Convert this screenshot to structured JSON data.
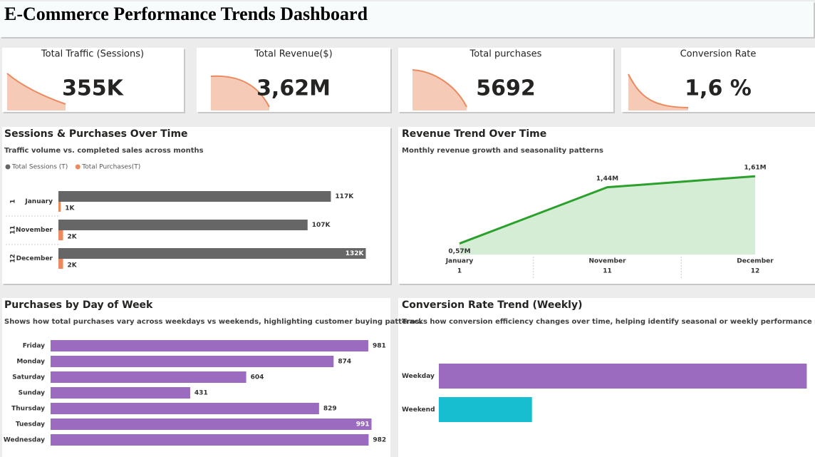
{
  "title": "E-Commerce Performance Trends Dashboard",
  "kpis": [
    {
      "label": "Total Traffic (Sessions)",
      "value": "355K"
    },
    {
      "label": "Total Revenue($)",
      "value": "3,62M"
    },
    {
      "label": "Total purchases",
      "value": "5692"
    },
    {
      "label": "Conversion Rate",
      "value": "1,6 %"
    }
  ],
  "chart_data": [
    {
      "type": "bar",
      "title": "Sessions & Purchases Over Time",
      "subtitle": "Traffic volume vs. completed sales across months",
      "categories": [
        "January",
        "November",
        "December"
      ],
      "category_codes": [
        "1",
        "11",
        "12"
      ],
      "series": [
        {
          "name": "Total Sessions (T)",
          "color": "#666666",
          "values": [
            117000,
            107000,
            132000
          ],
          "value_labels": [
            "117K",
            "107K",
            "132K"
          ]
        },
        {
          "name": "Total Purchases(T)",
          "color": "#ec8a5e",
          "values": [
            1000,
            2000,
            2000
          ],
          "value_labels": [
            "1K",
            "2K",
            "2K"
          ]
        }
      ],
      "xlim": [
        0,
        134000
      ]
    },
    {
      "type": "area",
      "title": "Revenue Trend Over Time",
      "subtitle": "Monthly revenue growth and seasonality patterns",
      "categories": [
        "January",
        "November",
        "December"
      ],
      "category_codes": [
        "1",
        "11",
        "12"
      ],
      "values": [
        570000,
        1440000,
        1610000
      ],
      "value_labels": [
        "0,57M",
        "1,44M",
        "1,61M"
      ],
      "color": "#2ca02c",
      "ylim": [
        400000,
        1800000
      ]
    },
    {
      "type": "bar",
      "title": "Purchases by Day of Week",
      "subtitle": "Shows how total purchases vary across weekdays vs weekends, highlighting customer buying patterns.",
      "categories": [
        "Friday",
        "Monday",
        "Saturday",
        "Sunday",
        "Thursday",
        "Tuesday",
        "Wednesday"
      ],
      "values": [
        981,
        874,
        604,
        431,
        829,
        991,
        982
      ],
      "color": "#9a6bbf",
      "xlim": [
        0,
        1000
      ]
    },
    {
      "type": "bar",
      "title": "Conversion Rate Trend (Weekly)",
      "subtitle": "Tracks how conversion efficiency changes over time, helping identify seasonal or weekly performance shifts.\"",
      "categories": [
        "Weekday",
        "Weekend"
      ],
      "values": [
        1.62,
        0.41
      ],
      "colors": [
        "#9a6bbf",
        "#17becf"
      ],
      "xlim": [
        0,
        1.65
      ]
    }
  ]
}
